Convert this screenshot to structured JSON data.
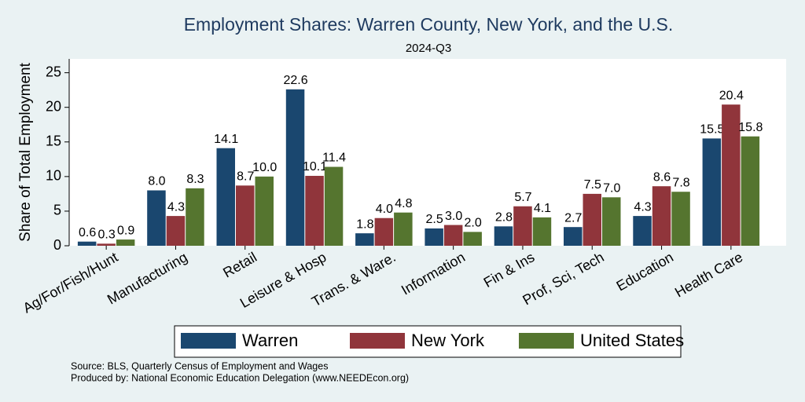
{
  "chart_data": {
    "type": "bar",
    "title": "Employment Shares: Warren County, New York, and the U.S.",
    "subtitle": "2024-Q3",
    "y_label": "Share of Total Employment",
    "categories": [
      "Ag/For/Fish/Hunt",
      "Manufacturing",
      "Retail",
      "Leisure & Hosp",
      "Trans. & Ware.",
      "Information",
      "Fin & Ins",
      "Prof, Sci, Tech",
      "Education",
      "Health Care"
    ],
    "series": [
      {
        "name": "Warren",
        "color": "#1a476f",
        "values": [
          0.6,
          8.0,
          14.1,
          22.6,
          1.8,
          2.5,
          2.8,
          2.7,
          4.3,
          15.5
        ],
        "value_labels": [
          "0.6",
          "8.0",
          "14.1",
          "22.6",
          "1.8",
          "2.5",
          "2.8",
          "2.7",
          "4.3",
          "15.5"
        ]
      },
      {
        "name": "New York",
        "color": "#90353b",
        "values": [
          0.3,
          4.3,
          8.7,
          10.1,
          4.0,
          3.0,
          5.7,
          7.5,
          8.6,
          20.4
        ],
        "value_labels": [
          "0.3",
          "4.3",
          "8.7",
          "10.1",
          "4.0",
          "3.0",
          "5.7",
          "7.5",
          "8.6",
          "20.4"
        ]
      },
      {
        "name": "United States",
        "color": "#55752f",
        "values": [
          0.9,
          8.3,
          10.0,
          11.4,
          4.8,
          2.0,
          4.1,
          7.0,
          7.8,
          15.8
        ],
        "value_labels": [
          "0.9",
          "8.3",
          "10.0",
          "11.4",
          "4.8",
          "2.0",
          "4.1",
          "7.0",
          "7.8",
          "15.8"
        ]
      }
    ],
    "ylim": [
      0,
      27
    ],
    "yticks": [
      0,
      5,
      10,
      15,
      20,
      25
    ],
    "grid": false,
    "legend": "bottom",
    "notes": [
      "Source: BLS, Quarterly Census of Employment and Wages",
      "Produced by: National Economic Education Delegation (www.NEEDEcon.org)"
    ]
  }
}
